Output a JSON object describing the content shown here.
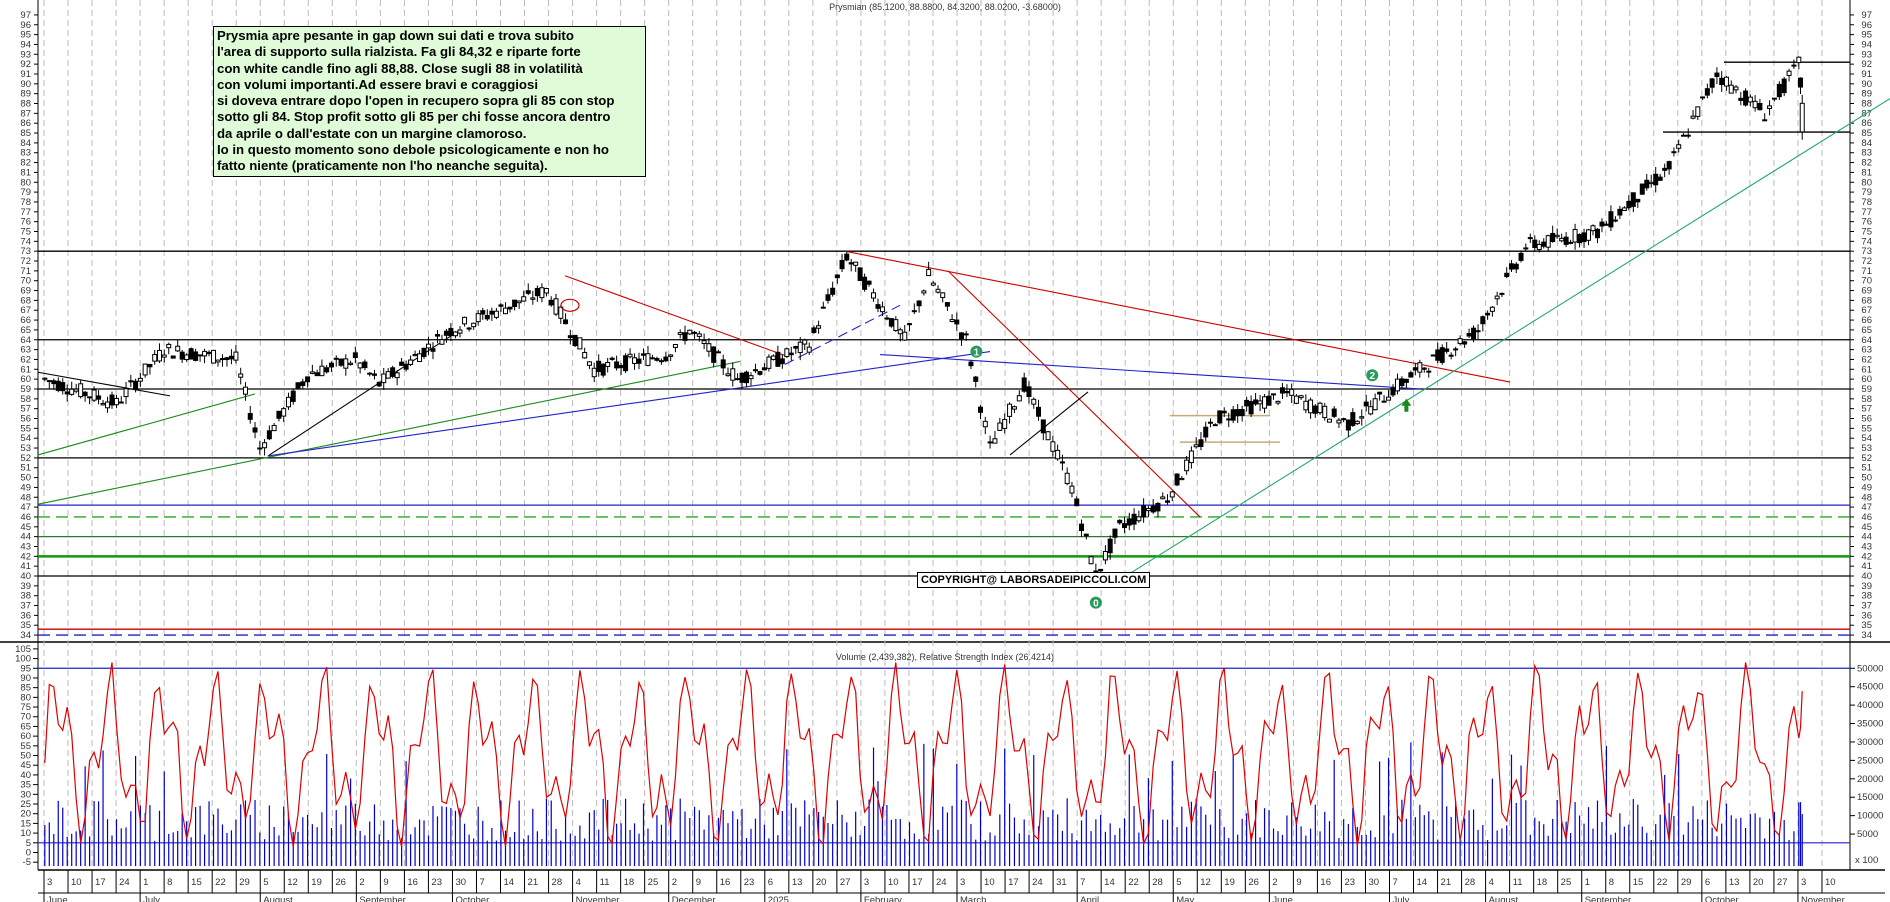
{
  "chart_data": {
    "type": "candlestick",
    "title": "Prysmian (85.1200, 88.8800, 84.3200, 88.0200, -3.68000)",
    "instrument": "Prysmian",
    "last_bar": {
      "open": 85.12,
      "high": 88.88,
      "low": 84.32,
      "close": 88.02,
      "change": -3.68
    },
    "price_axis": {
      "min": 34,
      "max": 97,
      "ticks": [
        34,
        35,
        36,
        37,
        38,
        39,
        40,
        41,
        42,
        43,
        44,
        45,
        46,
        47,
        48,
        49,
        50,
        51,
        52,
        53,
        54,
        55,
        56,
        57,
        58,
        59,
        60,
        61,
        62,
        63,
        64,
        65,
        66,
        67,
        68,
        69,
        70,
        71,
        72,
        73,
        74,
        75,
        76,
        77,
        78,
        79,
        80,
        81,
        82,
        83,
        84,
        85,
        86,
        87,
        88,
        89,
        90,
        91,
        92,
        93,
        94,
        95,
        96,
        97
      ]
    },
    "horizontal_levels": [
      {
        "price": 92.2,
        "color": "#000000",
        "style": "solid",
        "span": "right"
      },
      {
        "price": 85.1,
        "color": "#000000",
        "style": "solid",
        "span": "right"
      },
      {
        "price": 73,
        "color": "#000000",
        "style": "solid"
      },
      {
        "price": 64,
        "color": "#000000",
        "style": "solid"
      },
      {
        "price": 59,
        "color": "#000000",
        "style": "solid"
      },
      {
        "price": 52,
        "color": "#000000",
        "style": "solid"
      },
      {
        "price": 47.2,
        "color": "#2222cc",
        "style": "solid"
      },
      {
        "price": 46,
        "color": "#22aa22",
        "style": "dashed"
      },
      {
        "price": 44,
        "color": "#2a7a2a",
        "style": "solid"
      },
      {
        "price": 42,
        "color": "#119911",
        "style": "solid-thick"
      },
      {
        "price": 40,
        "color": "#000000",
        "style": "solid"
      },
      {
        "price": 34.6,
        "color": "#cc0000",
        "style": "solid"
      },
      {
        "price": 34,
        "color": "#2222cc",
        "style": "dashed"
      }
    ],
    "price_path_approx": [
      {
        "date": "2024-06-03",
        "close": 60
      },
      {
        "date": "2024-06-24",
        "close": 57.5
      },
      {
        "date": "2024-07-08",
        "close": 63
      },
      {
        "date": "2024-07-29",
        "close": 62
      },
      {
        "date": "2024-08-05",
        "close": 53
      },
      {
        "date": "2024-08-19",
        "close": 60.5
      },
      {
        "date": "2024-09-02",
        "close": 62
      },
      {
        "date": "2024-09-09",
        "close": 59.5
      },
      {
        "date": "2024-09-30",
        "close": 65
      },
      {
        "date": "2024-10-28",
        "close": 69
      },
      {
        "date": "2024-11-11",
        "close": 61
      },
      {
        "date": "2024-12-02",
        "close": 62.5
      },
      {
        "date": "2024-12-09",
        "close": 65
      },
      {
        "date": "2024-12-23",
        "close": 60
      },
      {
        "date": "2025-01-13",
        "close": 63.5
      },
      {
        "date": "2025-01-24",
        "close": 72.5
      },
      {
        "date": "2025-02-10",
        "close": 64
      },
      {
        "date": "2025-02-17",
        "close": 70.5
      },
      {
        "date": "2025-02-28",
        "close": 64
      },
      {
        "date": "2025-03-07",
        "close": 53
      },
      {
        "date": "2025-03-17",
        "close": 59.5
      },
      {
        "date": "2025-03-31",
        "close": 49
      },
      {
        "date": "2025-04-07",
        "close": 40
      },
      {
        "date": "2025-04-14",
        "close": 45
      },
      {
        "date": "2025-04-28",
        "close": 48
      },
      {
        "date": "2025-05-12",
        "close": 56
      },
      {
        "date": "2025-06-02",
        "close": 58.5
      },
      {
        "date": "2025-06-20",
        "close": 55.5
      },
      {
        "date": "2025-07-07",
        "close": 60
      },
      {
        "date": "2025-07-28",
        "close": 65
      },
      {
        "date": "2025-08-11",
        "close": 73.5
      },
      {
        "date": "2025-09-01",
        "close": 75
      },
      {
        "date": "2025-09-22",
        "close": 81.5
      },
      {
        "date": "2025-10-06",
        "close": 91
      },
      {
        "date": "2025-10-20",
        "close": 87
      },
      {
        "date": "2025-10-30",
        "close": 92
      },
      {
        "date": "2025-10-31",
        "close": 88.02
      }
    ],
    "markers": [
      {
        "label": "1",
        "date": "2025-03-03",
        "price": 62.8,
        "color": "#2a9a5a"
      },
      {
        "label": "0",
        "date": "2025-04-07",
        "price": 37.3,
        "color": "#2a9a5a"
      },
      {
        "label": "2",
        "date": "2025-06-27",
        "price": 60.4,
        "color": "#2a9a5a"
      },
      {
        "label": "up-arrow",
        "date": "2025-07-07",
        "price": 57.3,
        "color": "#1a8a1a"
      }
    ],
    "indicator_panel": {
      "title": "Volume (2,439,382), Relative Strength Index (26.4214)",
      "volume": 2439382,
      "rsi": 26.4214,
      "left_axis": {
        "min": -5,
        "max": 105,
        "ticks": [
          -5,
          0,
          5,
          10,
          15,
          20,
          25,
          30,
          35,
          40,
          45,
          50,
          55,
          60,
          65,
          70,
          75,
          80,
          85,
          90,
          95,
          100,
          105
        ]
      },
      "right_axis": {
        "ticks": [
          5000,
          10000,
          15000,
          20000,
          25000,
          30000,
          35000,
          40000,
          45000,
          50000
        ],
        "multiplier": "x 100"
      },
      "rsi_levels": [
        95,
        5
      ],
      "rsi_color": "#dd0000",
      "volume_color": "#0000cc"
    },
    "x_axis": {
      "day_ticks": [
        "3",
        "10",
        "17",
        "24",
        "1",
        "8",
        "15",
        "22",
        "29",
        "5",
        "12",
        "19",
        "26",
        "2",
        "9",
        "16",
        "23",
        "30",
        "7",
        "14",
        "21",
        "28",
        "4",
        "11",
        "18",
        "25",
        "2",
        "9",
        "16",
        "23",
        "6",
        "13",
        "20",
        "27",
        "3",
        "10",
        "17",
        "24",
        "3",
        "10",
        "17",
        "24",
        "31",
        "7",
        "14",
        "22",
        "28",
        "5",
        "12",
        "19",
        "26",
        "2",
        "9",
        "16",
        "23",
        "30",
        "7",
        "14",
        "21",
        "28",
        "4",
        "11",
        "18",
        "25",
        "1",
        "8",
        "15",
        "22",
        "29",
        "6",
        "13",
        "20",
        "27",
        "3",
        "10"
      ],
      "month_labels": [
        "June",
        "July",
        "August",
        "September",
        "October",
        "November",
        "December",
        "2025",
        "February",
        "March",
        "April",
        "May",
        "June",
        "July",
        "August",
        "September",
        "October",
        "November"
      ]
    },
    "xlabel": "",
    "ylabel": ""
  },
  "annotation": {
    "text": "Prysmia apre pesante in gap down sui dati e trova subito\nl'area di supporto sulla rialzista. Fa gli 84,32 e riparte forte\ncon white candle fino agli 88,88. Close sugli 88  in volatilità\ncon volumi importanti.Ad essere bravi e coraggiosi\nsi doveva entrare dopo l'open in recupero sopra gli 85 con stop\nsotto gli 84. Stop profit sotto gli 85 per chi fosse ancora dentro\nda aprile o dall'estate con un margine clamoroso.\nIo in questo momento sono debole psicologicamente e non ho\nfatto niente (praticamente non l'ho neanche seguita)."
  },
  "copyright": "COPYRIGHT@ LABORSADEIPICCOLI.COM",
  "volume_multiplier_label": "x 100"
}
